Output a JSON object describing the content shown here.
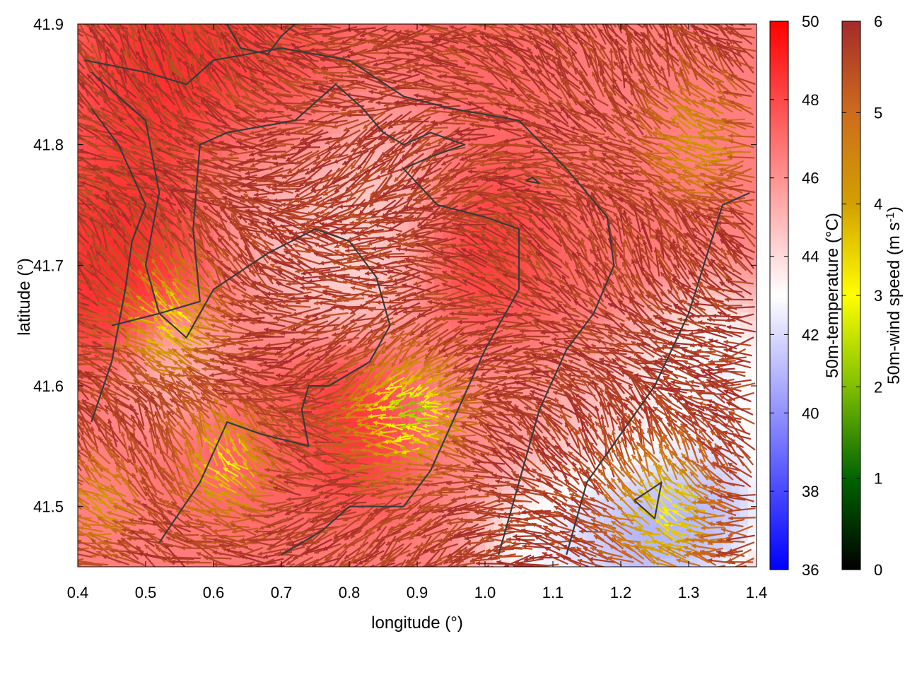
{
  "chart_data": {
    "type": "heatmap",
    "subtype": "temperature field with wind vectors and contour lines",
    "title": "",
    "xlabel": "longitude (°)",
    "ylabel": "latitude (°)",
    "xlim": [
      0.4,
      1.4
    ],
    "ylim": [
      41.45,
      41.9
    ],
    "x_ticks": [
      "0.4",
      "0.5",
      "0.6",
      "0.7",
      "0.8",
      "0.9",
      "1.0",
      "1.1",
      "1.2",
      "1.3",
      "1.4"
    ],
    "y_ticks": [
      "41.5",
      "41.6",
      "41.7",
      "41.8",
      "41.9"
    ],
    "grid": false,
    "temperature_colorbar": {
      "label": "50m-temperature (°C)",
      "range": [
        36,
        50
      ],
      "ticks": [
        "36",
        "38",
        "40",
        "42",
        "44",
        "46",
        "48",
        "50"
      ],
      "colors": [
        "#0000ff",
        "#ffffff",
        "#ff0000"
      ]
    },
    "wind_colorbar": {
      "label": "50m-wind speed (m s-1)",
      "label_main": "50m-wind speed (m s",
      "label_exp": "-1",
      "label_close": ")",
      "range": [
        0,
        6
      ],
      "ticks": [
        "0",
        "1",
        "2",
        "3",
        "4",
        "5",
        "6"
      ],
      "colors": [
        "#000000",
        "#006400",
        "#7fbf00",
        "#ffff00",
        "#d2a000",
        "#cd6c1d",
        "#a52a2a"
      ]
    },
    "temperature_regions": [
      {
        "lon": 0.55,
        "lat": 41.86,
        "t": 49.5,
        "r": 0.12
      },
      {
        "lon": 0.7,
        "lat": 41.84,
        "t": 48.5,
        "r": 0.1
      },
      {
        "lon": 0.95,
        "lat": 41.86,
        "t": 47.5,
        "r": 0.15
      },
      {
        "lon": 1.25,
        "lat": 41.86,
        "t": 46.5,
        "r": 0.15
      },
      {
        "lon": 0.5,
        "lat": 41.72,
        "t": 49.5,
        "r": 0.12
      },
      {
        "lon": 0.44,
        "lat": 41.68,
        "t": 49,
        "r": 0.07
      },
      {
        "lon": 0.7,
        "lat": 41.75,
        "t": 44,
        "r": 0.12
      },
      {
        "lon": 0.85,
        "lat": 41.78,
        "t": 43.5,
        "r": 0.1
      },
      {
        "lon": 0.82,
        "lat": 41.7,
        "t": 43.5,
        "r": 0.09
      },
      {
        "lon": 1.0,
        "lat": 41.72,
        "t": 49.5,
        "r": 0.1
      },
      {
        "lon": 1.15,
        "lat": 41.72,
        "t": 47,
        "r": 0.12
      },
      {
        "lon": 0.82,
        "lat": 41.57,
        "t": 49.5,
        "r": 0.09
      },
      {
        "lon": 0.66,
        "lat": 41.55,
        "t": 47.5,
        "r": 0.1
      },
      {
        "lon": 0.95,
        "lat": 41.58,
        "t": 46,
        "r": 0.1
      },
      {
        "lon": 0.55,
        "lat": 41.62,
        "t": 44,
        "r": 0.07
      },
      {
        "lon": 1.2,
        "lat": 41.55,
        "t": 44.5,
        "r": 0.12
      },
      {
        "lon": 1.32,
        "lat": 41.6,
        "t": 41,
        "r": 0.1
      },
      {
        "lon": 1.22,
        "lat": 41.49,
        "t": 38,
        "r": 0.09
      },
      {
        "lon": 1.32,
        "lat": 41.5,
        "t": 39.5,
        "r": 0.08
      },
      {
        "lon": 1.1,
        "lat": 41.47,
        "t": 41.5,
        "r": 0.08
      }
    ],
    "temperature_background": 46.5,
    "wind_field_description": "predominantly westward/north-westward flow, speed mostly near 6 m s-1 with slower (1-4 m s-1) pockets",
    "wind_slow_zones": [
      {
        "lon": 0.55,
        "lat": 41.65,
        "speed": 3.5,
        "r": 0.06
      },
      {
        "lon": 0.9,
        "lat": 41.58,
        "speed": 2.5,
        "r": 0.07
      },
      {
        "lon": 0.63,
        "lat": 41.53,
        "speed": 3.5,
        "r": 0.06
      },
      {
        "lon": 1.28,
        "lat": 41.49,
        "speed": 3.5,
        "r": 0.07
      },
      {
        "lon": 1.33,
        "lat": 41.8,
        "speed": 4.5,
        "r": 0.07
      },
      {
        "lon": 0.45,
        "lat": 41.5,
        "speed": 4.5,
        "r": 0.05
      }
    ],
    "contours": [
      [
        [
          0.41,
          41.87
        ],
        [
          0.5,
          41.86
        ],
        [
          0.56,
          41.85
        ],
        [
          0.6,
          41.87
        ],
        [
          0.7,
          41.88
        ],
        [
          0.8,
          41.87
        ],
        [
          0.88,
          41.84
        ],
        [
          0.95,
          41.83
        ],
        [
          1.05,
          41.82
        ],
        [
          1.12,
          41.78
        ],
        [
          1.18,
          41.74
        ],
        [
          1.19,
          41.7
        ],
        [
          1.16,
          41.66
        ],
        [
          1.12,
          41.63
        ],
        [
          1.08,
          41.58
        ],
        [
          1.05,
          41.52
        ],
        [
          1.02,
          41.46
        ]
      ],
      [
        [
          0.42,
          41.86
        ],
        [
          0.5,
          41.82
        ],
        [
          0.52,
          41.76
        ],
        [
          0.5,
          41.7
        ],
        [
          0.52,
          41.66
        ],
        [
          0.58,
          41.67
        ],
        [
          0.57,
          41.73
        ],
        [
          0.58,
          41.8
        ],
        [
          0.62,
          41.81
        ],
        [
          0.72,
          41.82
        ],
        [
          0.78,
          41.85
        ],
        [
          0.82,
          41.83
        ],
        [
          0.85,
          41.81
        ],
        [
          0.88,
          41.8
        ],
        [
          0.92,
          41.81
        ],
        [
          0.97,
          41.8
        ],
        [
          0.92,
          41.79
        ],
        [
          0.88,
          41.78
        ],
        [
          0.93,
          41.75
        ],
        [
          1.0,
          41.74
        ],
        [
          1.05,
          41.73
        ],
        [
          1.05,
          41.68
        ],
        [
          1.0,
          41.63
        ],
        [
          0.96,
          41.58
        ],
        [
          0.92,
          41.53
        ],
        [
          0.88,
          41.5
        ],
        [
          0.8,
          41.5
        ],
        [
          0.76,
          41.48
        ],
        [
          0.7,
          41.46
        ]
      ],
      [
        [
          0.45,
          41.65
        ],
        [
          0.52,
          41.66
        ],
        [
          0.56,
          41.64
        ],
        [
          0.6,
          41.68
        ],
        [
          0.68,
          41.71
        ],
        [
          0.75,
          41.73
        ],
        [
          0.8,
          41.72
        ],
        [
          0.84,
          41.69
        ],
        [
          0.86,
          41.65
        ],
        [
          0.83,
          41.62
        ],
        [
          0.77,
          41.6
        ],
        [
          0.74,
          41.6
        ],
        [
          0.73,
          41.58
        ],
        [
          0.74,
          41.55
        ],
        [
          0.67,
          41.56
        ],
        [
          0.62,
          41.57
        ],
        [
          0.58,
          41.52
        ],
        [
          0.52,
          41.47
        ]
      ],
      [
        [
          0.42,
          41.57
        ],
        [
          0.45,
          41.62
        ],
        [
          0.47,
          41.68
        ],
        [
          0.48,
          41.72
        ],
        [
          0.5,
          41.75
        ],
        [
          0.46,
          41.8
        ],
        [
          0.42,
          41.83
        ]
      ],
      [
        [
          1.39,
          41.76
        ],
        [
          1.35,
          41.75
        ],
        [
          1.3,
          41.66
        ],
        [
          1.25,
          41.6
        ],
        [
          1.2,
          41.56
        ],
        [
          1.15,
          41.52
        ],
        [
          1.12,
          41.46
        ]
      ],
      [
        [
          1.22,
          41.505
        ],
        [
          1.26,
          41.52
        ],
        [
          1.25,
          41.49
        ],
        [
          1.22,
          41.505
        ]
      ],
      [
        [
          1.06,
          41.77
        ],
        [
          1.08,
          41.768
        ],
        [
          1.07,
          41.773
        ],
        [
          1.06,
          41.77
        ]
      ],
      [
        [
          0.62,
          41.9
        ],
        [
          0.64,
          41.88
        ],
        [
          0.68,
          41.875
        ],
        [
          0.7,
          41.89
        ],
        [
          0.72,
          41.9
        ]
      ]
    ]
  }
}
